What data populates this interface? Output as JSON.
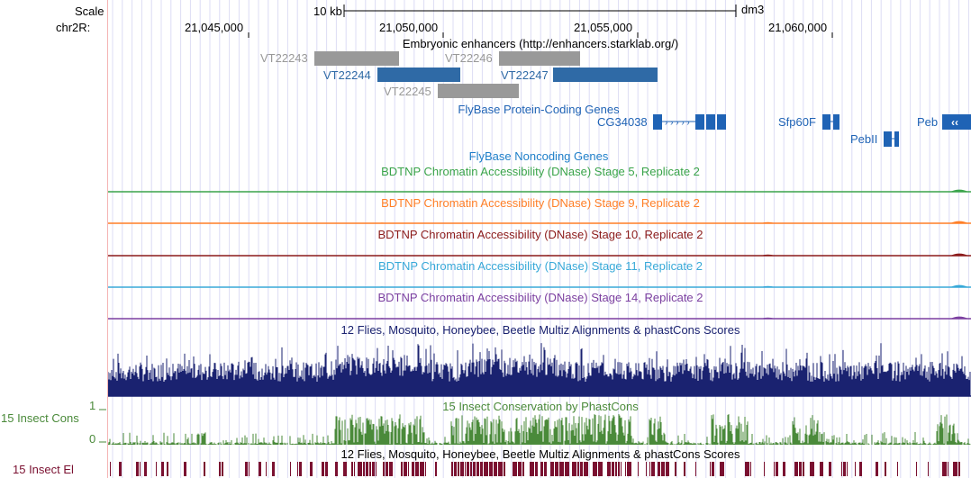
{
  "ruler": {
    "scale_label": "Scale",
    "chrom_label": "chr2R:",
    "scale_bar_text": "10 kb",
    "assembly": "dm3",
    "ticks": [
      "21,045,000",
      "21,050,000",
      "21,055,000",
      "21,060,000"
    ]
  },
  "enhancers": {
    "title": "Embryonic enhancers (http://enhancers.starklab.org/)",
    "items": [
      {
        "name": "VT22243",
        "color": "#999999"
      },
      {
        "name": "VT22246",
        "color": "#999999"
      },
      {
        "name": "VT22244",
        "color": "#2f6aa6"
      },
      {
        "name": "VT22247",
        "color": "#2f6aa6"
      },
      {
        "name": "VT22245",
        "color": "#999999"
      }
    ]
  },
  "genes": {
    "title": "FlyBase Protein-Coding Genes",
    "color": "#1f63b5",
    "items": [
      {
        "name": "CG34038"
      },
      {
        "name": "Sfp60F"
      },
      {
        "name": "PebII"
      },
      {
        "name": "Peb"
      }
    ]
  },
  "noncoding": {
    "title": "FlyBase Noncoding Genes",
    "color": "#1f7fc9"
  },
  "dnase": [
    {
      "title": "BDTNP Chromatin Accessibility (DNase) Stage 5, Replicate 2",
      "color": "#3aa44a"
    },
    {
      "title": "BDTNP Chromatin Accessibility (DNase) Stage 9, Replicate 2",
      "color": "#ff7f27"
    },
    {
      "title": "BDTNP Chromatin Accessibility (DNase) Stage 10, Replicate 2",
      "color": "#8b1a1a"
    },
    {
      "title": "BDTNP Chromatin Accessibility (DNase) Stage 11, Replicate 2",
      "color": "#38a9d8"
    },
    {
      "title": "BDTNP Chromatin Accessibility (DNase) Stage 14, Replicate 2",
      "color": "#7b3fa0"
    }
  ],
  "multiz": {
    "title": "12 Flies, Mosquito, Honeybee, Beetle Multiz Alignments & phastCons Scores",
    "color": "#1a2270"
  },
  "phastcons": {
    "title": "15 Insect Conservation by PhastCons",
    "left_label": "15 Insect Cons",
    "y_max": "1",
    "y_min": "0",
    "color": "#4a8a3a"
  },
  "elements": {
    "title": "12 Flies, Mosquito, Honeybee, Beetle Multiz Alignments & phastCons Scores",
    "left_label": "15 Insect El",
    "color": "#7a1030"
  }
}
